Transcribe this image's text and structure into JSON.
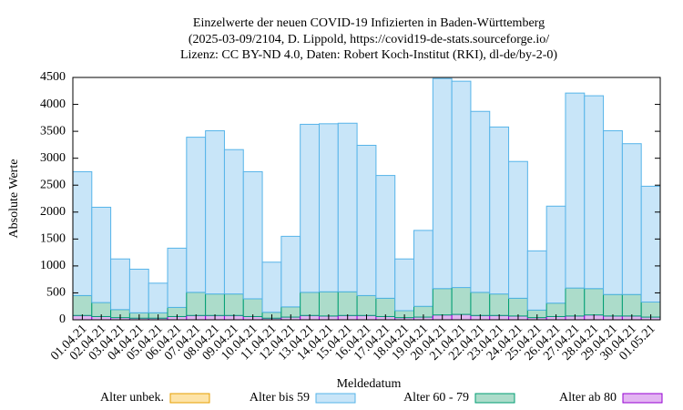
{
  "chart_data": {
    "type": "stacked_bar",
    "title": [
      "Einzelwerte der neuen COVID-19 Infizierten in Baden-Württemberg",
      "(2025-03-09/2104, D. Lippold, https://covid19-de-stats.sourceforge.io/",
      "Lizenz: CC BY-ND 4.0, Daten: Robert Koch-Institut (RKI), dl-de/by-2-0)"
    ],
    "x_label": "Meldedatum",
    "y_label": "Absolute Werte",
    "categories": [
      "01.04.21",
      "02.04.21",
      "03.04.21",
      "04.04.21",
      "05.04.21",
      "06.04.21",
      "07.04.21",
      "08.04.21",
      "09.04.21",
      "10.04.21",
      "11.04.21",
      "12.04.21",
      "13.04.21",
      "14.04.21",
      "15.04.21",
      "16.04.21",
      "17.04.21",
      "18.04.21",
      "19.04.21",
      "20.04.21",
      "21.04.21",
      "22.04.21",
      "23.04.21",
      "24.04.21",
      "25.04.21",
      "26.04.21",
      "27.04.21",
      "28.04.21",
      "29.04.21",
      "30.04.21",
      "01.05.21"
    ],
    "series": [
      {
        "name": "Alter unbek.",
        "color": "#fde3a7",
        "edge_color": "#e69f00",
        "values": [
          0,
          0,
          0,
          0,
          0,
          0,
          0,
          0,
          0,
          0,
          0,
          0,
          0,
          0,
          0,
          0,
          0,
          0,
          0,
          0,
          0,
          0,
          0,
          0,
          0,
          0,
          0,
          0,
          0,
          0,
          0
        ]
      },
      {
        "name": "Alter bis 59",
        "color": "#c8e5f8",
        "edge_color": "#56b4e9",
        "values": [
          2300,
          1770,
          940,
          810,
          550,
          1100,
          2880,
          3030,
          2680,
          2360,
          930,
          1310,
          3120,
          3120,
          3130,
          2790,
          2280,
          960,
          1410,
          3900,
          3830,
          3360,
          3100,
          2540,
          1100,
          1800,
          3620,
          3580,
          3040,
          2800,
          2150
        ]
      },
      {
        "name": "Alter 60 - 79",
        "color": "#acdcca",
        "edge_color": "#009e73",
        "values": [
          370,
          260,
          150,
          100,
          100,
          170,
          430,
          400,
          400,
          330,
          110,
          190,
          430,
          450,
          440,
          370,
          340,
          130,
          200,
          490,
          500,
          430,
          400,
          330,
          140,
          250,
          520,
          490,
          400,
          400,
          280
        ]
      },
      {
        "name": "Alter ab 80",
        "color": "#e3b5f2",
        "edge_color": "#9400d3",
        "values": [
          80,
          60,
          40,
          30,
          30,
          60,
          80,
          80,
          80,
          60,
          30,
          50,
          80,
          70,
          80,
          80,
          60,
          40,
          50,
          90,
          100,
          80,
          80,
          70,
          40,
          60,
          70,
          90,
          70,
          70,
          50
        ]
      }
    ],
    "stack_order": "reverse",
    "ylim": [
      0,
      4500
    ],
    "yticks": [
      0,
      500,
      1000,
      1500,
      2000,
      2500,
      3000,
      3500,
      4000,
      4500
    ],
    "grid": false,
    "legend": "bottom"
  }
}
